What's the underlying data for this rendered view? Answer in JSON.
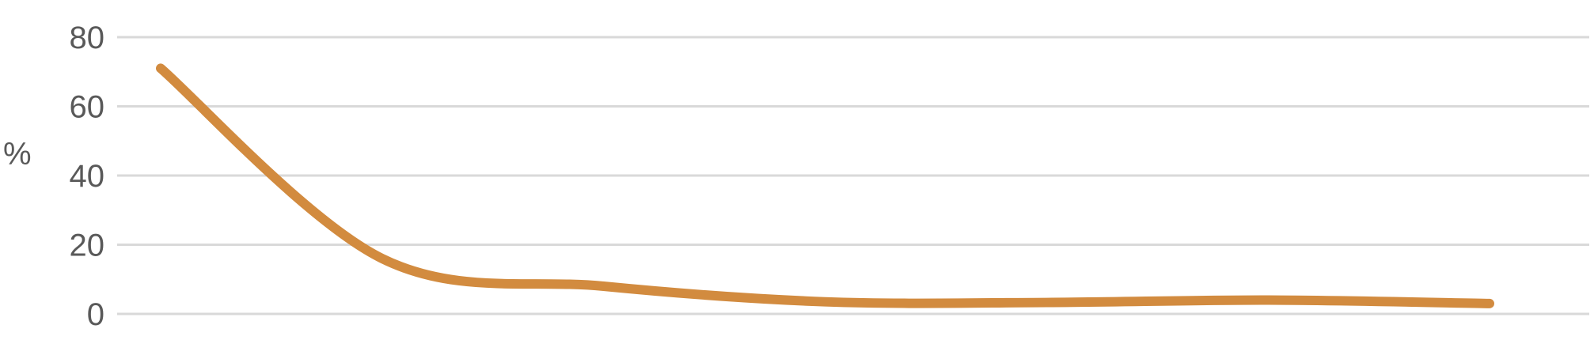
{
  "chart_data": {
    "type": "line",
    "title": "",
    "xlabel": "",
    "ylabel": "%",
    "ylim": [
      0,
      80
    ],
    "yticks": [
      "0",
      "20",
      "40",
      "60",
      "80"
    ],
    "grid": true,
    "smooth": true,
    "series": [
      {
        "color": "#D28B3F",
        "values": [
          71,
          16,
          8,
          3.5,
          3.3,
          4.0,
          3.0
        ]
      }
    ]
  }
}
